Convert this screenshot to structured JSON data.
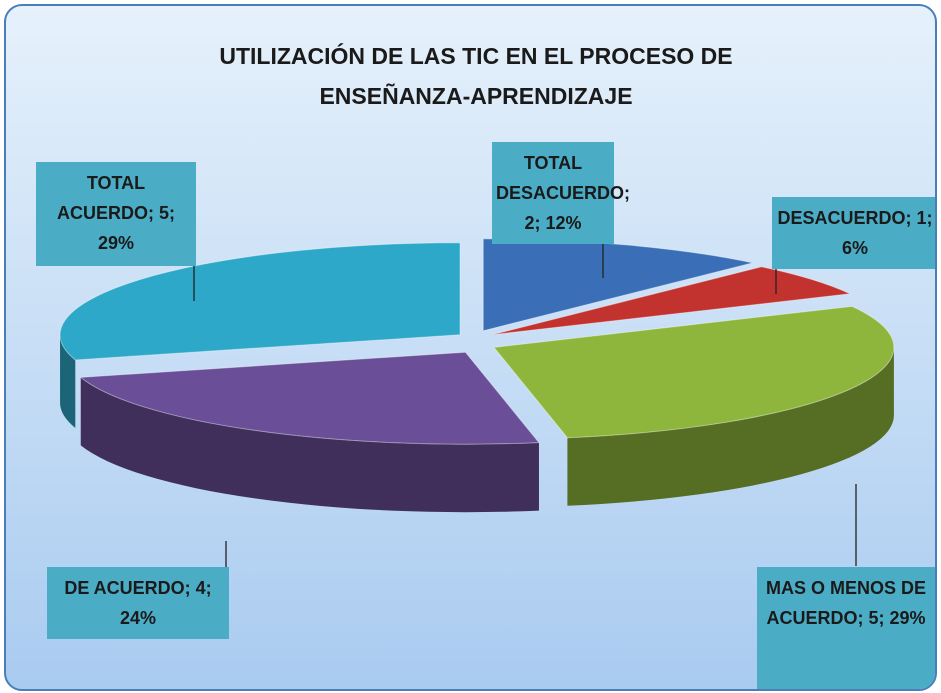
{
  "chart_data": {
    "type": "pie",
    "title": "UTILIZACIÓN DE LAS TIC EN EL PROCESO DE ENSEÑANZA-APRENDIZAJE",
    "values": [
      2,
      1,
      5,
      4,
      5
    ],
    "value_labels": [
      "TOTAL DESACUERDO; 2; 12%",
      "DESACUERDO; 1; 6%",
      "MAS O MENOS DE ACUERDO; 5; 29%",
      "DE ACUERDO; 4; 24%",
      "TOTAL ACUERDO; 5; 29%"
    ],
    "colors": [
      "#3a6fb8",
      "#c2322e",
      "#8fb63c",
      "#6b4e98",
      "#2ea8c8"
    ]
  }
}
